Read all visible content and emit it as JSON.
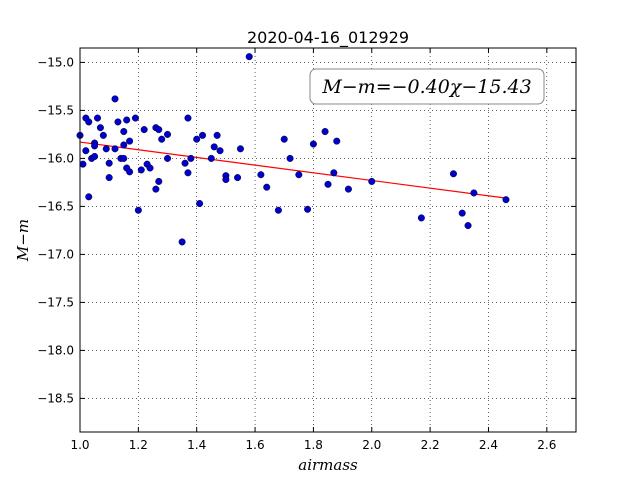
{
  "chart_data": {
    "type": "scatter",
    "title": "2020-04-16_012929",
    "xlabel": "airmass",
    "ylabel": "M−m",
    "xlim": [
      1.0,
      2.7
    ],
    "ylim": [
      -18.85,
      -14.85
    ],
    "x_ticks": [
      1.0,
      1.2,
      1.4,
      1.6,
      1.8,
      2.0,
      2.2,
      2.4,
      2.6
    ],
    "x_tick_labels": [
      "1.0",
      "1.2",
      "1.4",
      "1.6",
      "1.8",
      "2.0",
      "2.2",
      "2.4",
      "2.6"
    ],
    "y_ticks": [
      -15.0,
      -15.5,
      -16.0,
      -16.5,
      -17.0,
      -17.5,
      -18.0,
      -18.5
    ],
    "y_tick_labels": [
      "−15.0",
      "−15.5",
      "−16.0",
      "−16.5",
      "−17.0",
      "−17.5",
      "−18.0",
      "−18.5"
    ],
    "grid": true,
    "annotation": "M−m=−0.40χ−15.43",
    "annotation_position": "top-right",
    "point_color": "#0000cc",
    "fit_color": "#ff0000",
    "fit": {
      "slope": -0.4,
      "intercept": -15.43,
      "x_range": [
        1.0,
        2.46
      ]
    },
    "points": [
      [
        1.0,
        -15.76
      ],
      [
        1.01,
        -16.06
      ],
      [
        1.02,
        -15.58
      ],
      [
        1.02,
        -15.92
      ],
      [
        1.03,
        -15.62
      ],
      [
        1.03,
        -16.4
      ],
      [
        1.04,
        -16.0
      ],
      [
        1.05,
        -15.84
      ],
      [
        1.05,
        -15.87
      ],
      [
        1.05,
        -15.98
      ],
      [
        1.06,
        -15.58
      ],
      [
        1.07,
        -15.68
      ],
      [
        1.08,
        -15.76
      ],
      [
        1.09,
        -15.9
      ],
      [
        1.1,
        -16.05
      ],
      [
        1.1,
        -16.2
      ],
      [
        1.12,
        -15.38
      ],
      [
        1.12,
        -15.9
      ],
      [
        1.13,
        -15.62
      ],
      [
        1.14,
        -16.0
      ],
      [
        1.15,
        -15.72
      ],
      [
        1.15,
        -15.86
      ],
      [
        1.15,
        -16.0
      ],
      [
        1.16,
        -15.6
      ],
      [
        1.16,
        -16.1
      ],
      [
        1.17,
        -15.82
      ],
      [
        1.17,
        -16.14
      ],
      [
        1.19,
        -15.58
      ],
      [
        1.2,
        -16.54
      ],
      [
        1.21,
        -16.12
      ],
      [
        1.22,
        -15.7
      ],
      [
        1.23,
        -16.06
      ],
      [
        1.24,
        -16.1
      ],
      [
        1.26,
        -15.68
      ],
      [
        1.26,
        -16.32
      ],
      [
        1.27,
        -16.24
      ],
      [
        1.27,
        -15.7
      ],
      [
        1.28,
        -15.8
      ],
      [
        1.3,
        -15.75
      ],
      [
        1.3,
        -16.0
      ],
      [
        1.35,
        -16.87
      ],
      [
        1.36,
        -16.05
      ],
      [
        1.37,
        -15.58
      ],
      [
        1.37,
        -16.15
      ],
      [
        1.38,
        -16.0
      ],
      [
        1.4,
        -15.8
      ],
      [
        1.41,
        -16.47
      ],
      [
        1.42,
        -15.76
      ],
      [
        1.45,
        -16.0
      ],
      [
        1.46,
        -15.88
      ],
      [
        1.47,
        -15.76
      ],
      [
        1.48,
        -15.92
      ],
      [
        1.5,
        -16.18
      ],
      [
        1.5,
        -16.22
      ],
      [
        1.54,
        -16.2
      ],
      [
        1.55,
        -15.9
      ],
      [
        1.58,
        -14.94
      ],
      [
        1.62,
        -16.17
      ],
      [
        1.64,
        -16.3
      ],
      [
        1.68,
        -16.54
      ],
      [
        1.7,
        -15.8
      ],
      [
        1.72,
        -16.0
      ],
      [
        1.75,
        -16.17
      ],
      [
        1.78,
        -16.53
      ],
      [
        1.8,
        -15.85
      ],
      [
        1.84,
        -15.72
      ],
      [
        1.85,
        -16.27
      ],
      [
        1.87,
        -16.15
      ],
      [
        1.88,
        -15.82
      ],
      [
        1.92,
        -16.32
      ],
      [
        2.0,
        -16.24
      ],
      [
        2.17,
        -16.62
      ],
      [
        2.28,
        -16.16
      ],
      [
        2.31,
        -16.57
      ],
      [
        2.33,
        -16.7
      ],
      [
        2.35,
        -16.36
      ],
      [
        2.46,
        -16.43
      ]
    ]
  }
}
